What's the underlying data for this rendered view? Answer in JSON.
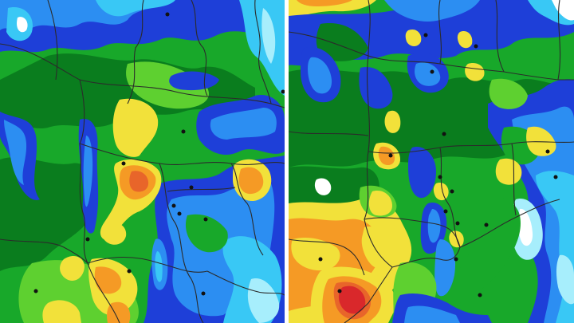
{
  "colors": {
    "deep_green": "#0a7d1e",
    "green": "#18a82a",
    "light_green": "#5ed030",
    "yellow": "#f2e13a",
    "orange": "#f59a25",
    "dark_orange": "#e8652a",
    "red": "#d9282b",
    "blue": "#1e3fd8",
    "light_blue": "#2c8ef2",
    "cyan": "#39c8f5",
    "pale_cyan": "#a7eefc",
    "white": "#ffffff",
    "border": "#2b2b2b",
    "city_dot": "#111111"
  },
  "panels": [
    {
      "id": "left",
      "description_icon": "precipitation-map-panel"
    },
    {
      "id": "right",
      "description_icon": "precipitation-map-panel"
    }
  ]
}
